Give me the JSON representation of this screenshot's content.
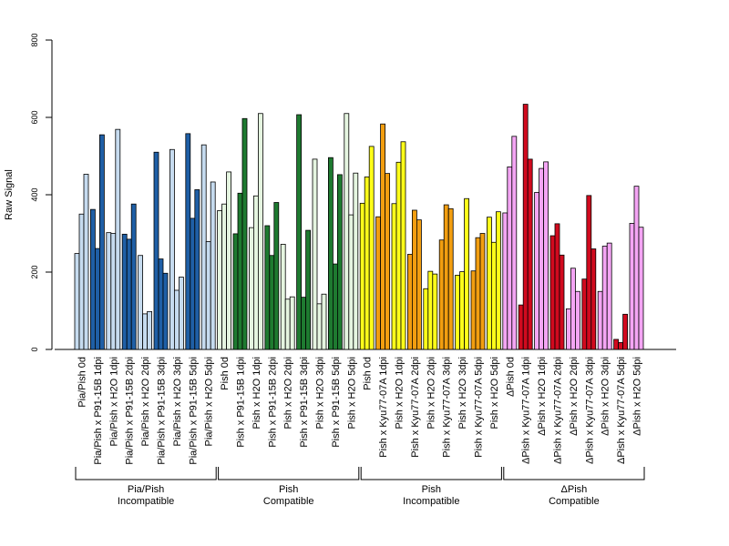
{
  "chart_data": {
    "type": "bar",
    "ylabel": "Raw Signal",
    "ylim": [
      0,
      800
    ],
    "yticks": [
      "0",
      "200",
      "400",
      "600",
      "800"
    ],
    "categories": [
      "Pia/Pish 0d",
      "Pia/Pish x P91-15B 1dpi",
      "Pia/Pish x H2O 1dpi",
      "Pia/Pish x P91-15B 2dpi",
      "Pia/Pish x H2O 2dpi",
      "Pia/Pish x P91-15B 3dpi",
      "Pia/Pish x H2O 3dpi",
      "Pia/Pish x P91-15B 5dpi",
      "Pia/Pish x H2O 5dpi",
      "Pish 0d",
      "Pish x P91-15B 1dpi",
      "Pish x H2O 1dpi",
      "Pish x P91-15B 2dpi",
      "Pish x H2O 2dpi",
      "Pish x P91-15B 3dpi",
      "Pish x H2O 3dpi",
      "Pish x P91-15B 5dpi",
      "Pish x H2O 5dpi",
      "Pish 0d",
      "Pish x Kyu77-07A 1dpi",
      "Pish x H2O 1dpi",
      "Pish x Kyu77-07A 2dpi",
      "Pish x H2O 2dpi",
      "Pish x Kyu77-07A 3dpi",
      "Pish x H2O 3dpi",
      "Pish x Kyu77-07A 5dpi",
      "Pish x H2O 5dpi",
      "ΔPish 0d",
      "ΔPish x Kyu77-07A 1dpi",
      "ΔPish x H2O 1dpi",
      "ΔPish x Kyu77-07A 2dpi",
      "ΔPish x H2O 2dpi",
      "ΔPish x Kyu77-07A 3dpi",
      "ΔPish x H2O 3dpi",
      "ΔPish x Kyu77-07A 5dpi",
      "ΔPish x H2O 5dpi"
    ],
    "values": [
      [
        248,
        350,
        453
      ],
      [
        362,
        261,
        555
      ],
      [
        302,
        300,
        569
      ],
      [
        298,
        285,
        376
      ],
      [
        243,
        92,
        98
      ],
      [
        510,
        234,
        197
      ],
      [
        517,
        153,
        187
      ],
      [
        558,
        339,
        413
      ],
      [
        529,
        279,
        433
      ],
      [
        359,
        376,
        459
      ],
      [
        299,
        404,
        597
      ],
      [
        315,
        397,
        610
      ],
      [
        320,
        243,
        380
      ],
      [
        272,
        130,
        136
      ],
      [
        607,
        135,
        308
      ],
      [
        492,
        118,
        143
      ],
      [
        496,
        221,
        452
      ],
      [
        610,
        348,
        456
      ],
      [
        378,
        446,
        525
      ],
      [
        343,
        583,
        455
      ],
      [
        377,
        484,
        537
      ],
      [
        246,
        360,
        335
      ],
      [
        157,
        202,
        195
      ],
      [
        283,
        374,
        364
      ],
      [
        192,
        201,
        390
      ],
      [
        203,
        289,
        300
      ],
      [
        342,
        277,
        356
      ],
      [
        353,
        472,
        551
      ],
      [
        115,
        634,
        492
      ],
      [
        406,
        468,
        485
      ],
      [
        294,
        325,
        244
      ],
      [
        105,
        210,
        150
      ],
      [
        182,
        398,
        260
      ],
      [
        150,
        267,
        275
      ],
      [
        26,
        18,
        91
      ],
      [
        326,
        422,
        316
      ]
    ],
    "colors": [
      "#c6dbef",
      "#1f5fa6",
      "#c6dbef",
      "#1f5fa6",
      "#c6dbef",
      "#1f5fa6",
      "#c6dbef",
      "#1f5fa6",
      "#c6dbef",
      "#e5f5e0",
      "#1e7a30",
      "#e5f5e0",
      "#1e7a30",
      "#e5f5e0",
      "#1e7a30",
      "#e5f5e0",
      "#1e7a30",
      "#e5f5e0",
      "#ffff1a",
      "#f29e10",
      "#ffff1a",
      "#f29e10",
      "#ffff1a",
      "#f29e10",
      "#ffff1a",
      "#f29e10",
      "#ffff1a",
      "#f4a5f4",
      "#d10a1e",
      "#f4a5f4",
      "#d10a1e",
      "#f4a5f4",
      "#d10a1e",
      "#f4a5f4",
      "#d10a1e",
      "#f4a5f4"
    ],
    "groups": [
      {
        "line1": "Pia/Pish",
        "line2": "Incompatible"
      },
      {
        "line1": "Pish",
        "line2": "Compatible"
      },
      {
        "line1": "Pish",
        "line2": "Incompatible"
      },
      {
        "line1": "ΔPish",
        "line2": "Compatible"
      }
    ],
    "grid": false,
    "legend": "none"
  }
}
